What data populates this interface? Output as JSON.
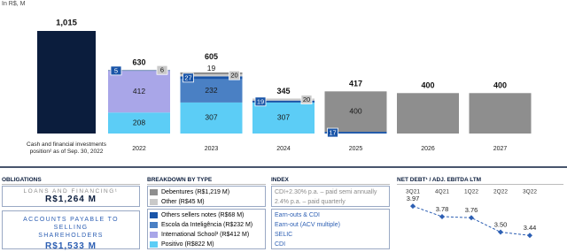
{
  "chart_data": [
    {
      "type": "stacked_bar",
      "unit_label": "In R$, M",
      "cash": {
        "label": "Cash and financial investments position² as of Sep. 30, 2022",
        "value": 1015,
        "value_label": "1,015",
        "color": "#0b1d3d"
      },
      "categories": [
        "2022",
        "2023",
        "2024",
        "2025",
        "2026",
        "2027"
      ],
      "series": [
        {
          "name": "Debentures (R$1,219 M)",
          "color": "#8e8e8e",
          "values": [
            null,
            19,
            null,
            400,
            400,
            400
          ]
        },
        {
          "name": "Other (R$45 M)",
          "color": "#c9c9c9",
          "values": [
            6,
            20,
            20,
            null,
            null,
            null
          ]
        },
        {
          "name": "Others sellers notes (R$68 M)",
          "color": "#1a55a8",
          "values": [
            5,
            27,
            19,
            17,
            null,
            null
          ]
        },
        {
          "name": "Escola da Inteligência (R$232 M)",
          "color": "#4a80c4",
          "values": [
            null,
            232,
            null,
            null,
            null,
            null
          ]
        },
        {
          "name": "International School³ (R$412 M)",
          "color": "#a9a6e8",
          "values": [
            412,
            null,
            null,
            null,
            null,
            null
          ]
        },
        {
          "name": "Positivo (R$822 M)",
          "color": "#5ccdf6",
          "values": [
            208,
            307,
            307,
            null,
            null,
            null
          ]
        }
      ],
      "totals": [
        630,
        605,
        345,
        417,
        400,
        400
      ],
      "ylim": [
        0,
        1050
      ]
    },
    {
      "type": "line",
      "title": "NET DEBT¹ / ADJ. EBITDA LTM",
      "categories": [
        "3Q21",
        "4Q21",
        "1Q22",
        "2Q22",
        "3Q22"
      ],
      "values": [
        3.97,
        3.78,
        3.76,
        3.5,
        3.44
      ],
      "value_labels": [
        "3.97",
        "3.78",
        "3.76",
        "3.50",
        "3.44"
      ],
      "color": "#2d5fb3",
      "ylim": [
        3.3,
        4.1
      ]
    }
  ],
  "panel": {
    "obligations": {
      "header": "OBLIGATIONS",
      "items": [
        {
          "label": "LOANS AND FINANCING¹",
          "amount": "R$1,264 M"
        },
        {
          "label": "ACCOUNTS PAYABLE TO SELLING SHAREHOLDERS",
          "amount": "R$1,533 M"
        }
      ]
    },
    "breakdown_header": "BREAKDOWN BY TYPE",
    "index": {
      "header": "INDEX",
      "rows": [
        "CDI+2.30% p.a. – paid semi annually",
        "2.4% p.a. – paid quarterly",
        "Earn-outs & CDI",
        "Earn-out (ACV multiple)",
        "SELIC",
        "CDI"
      ]
    }
  }
}
